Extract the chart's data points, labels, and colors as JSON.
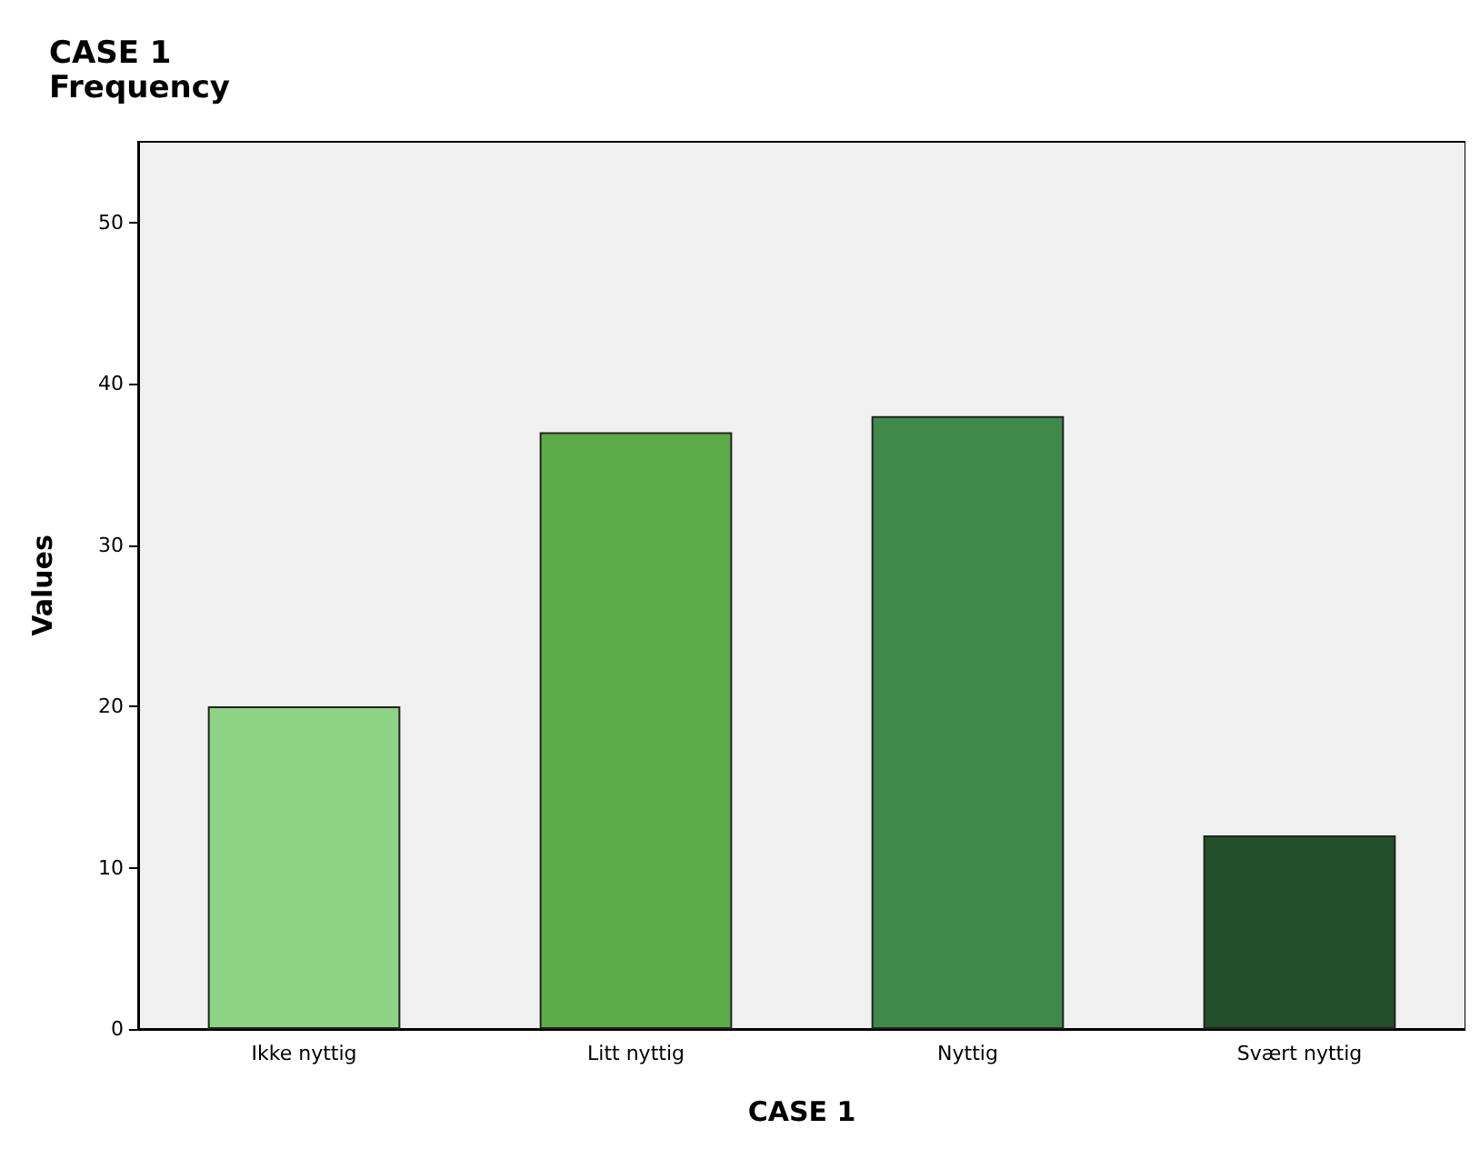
{
  "chart_data": {
    "type": "bar",
    "title": "CASE 1",
    "subtitle": "Frequency",
    "xlabel": "CASE 1",
    "ylabel": "Values",
    "categories": [
      "Ikke nyttig",
      "Litt nyttig",
      "Nyttig",
      "Svært nyttig"
    ],
    "values": [
      20,
      37,
      38,
      12
    ],
    "colors": [
      "#8cd383",
      "#5caa48",
      "#3f8a4b",
      "#254f2a"
    ],
    "ylim": [
      0,
      55
    ],
    "yticks": [
      0,
      10,
      20,
      30,
      40,
      50
    ],
    "grid": false
  }
}
